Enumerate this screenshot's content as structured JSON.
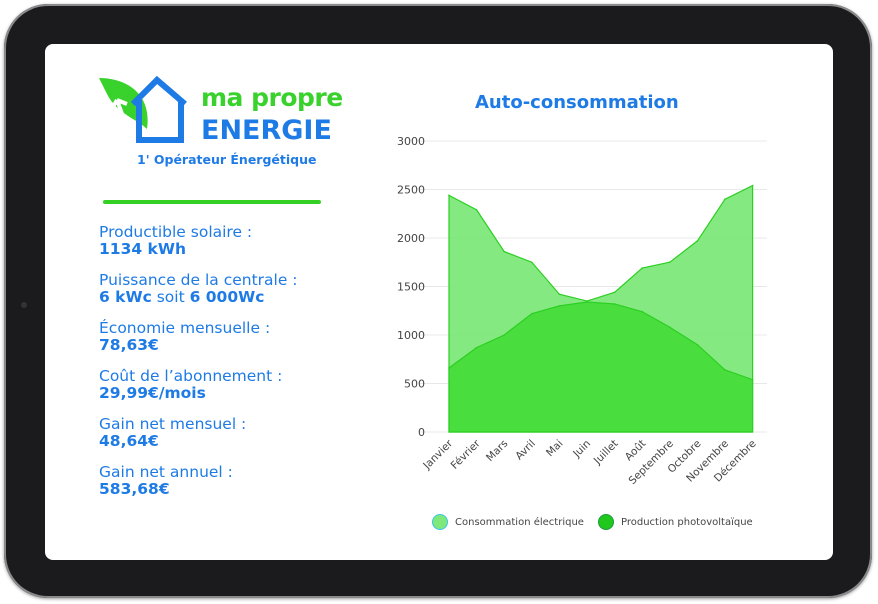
{
  "logo": {
    "line1": "ma propre",
    "line2": "ENERGIE",
    "tagline": "1er Opérateur Énergétique",
    "tagline_display": "1' Opérateur Énergétique"
  },
  "stats": [
    {
      "label": "Productible solaire :",
      "value": "1134 kWh"
    },
    {
      "label": "Puissance de la centrale :",
      "value_a": "6 kWc",
      "value_mid": " soit ",
      "value_b": "6 000Wc"
    },
    {
      "label": "Économie mensuelle :",
      "value": "78,63€"
    },
    {
      "label": "Coût de l’abonnement :",
      "value": "29,99€/mois"
    },
    {
      "label": "Gain net mensuel :",
      "value": "48,64€"
    },
    {
      "label": "Gain net annuel :",
      "value": "583,68€"
    }
  ],
  "colors": {
    "brand_blue": "#1e7be6",
    "brand_green": "#39d12c",
    "consumption": "#7ee87a",
    "production": "#3edc32"
  },
  "chart_data": {
    "type": "area",
    "title": "Auto-consommation",
    "categories": [
      "Janvier",
      "Février",
      "Mars",
      "Avril",
      "Mai",
      "Juin",
      "Juillet",
      "Août",
      "Septembre",
      "Octobre",
      "Novembre",
      "Décembre"
    ],
    "series": [
      {
        "name": "Consommation électrique",
        "values": [
          2440,
          2290,
          1860,
          1750,
          1420,
          1350,
          1440,
          1690,
          1750,
          1970,
          2400,
          2540
        ]
      },
      {
        "name": "Production photovoltaïque",
        "values": [
          660,
          870,
          1000,
          1220,
          1300,
          1340,
          1320,
          1240,
          1080,
          900,
          640,
          540
        ]
      }
    ],
    "yticks": [
      "0",
      "500",
      "1000",
      "1500",
      "2000",
      "2500",
      "3000"
    ],
    "ylim": [
      0,
      3000
    ],
    "grid": true,
    "legend": "bottom"
  }
}
